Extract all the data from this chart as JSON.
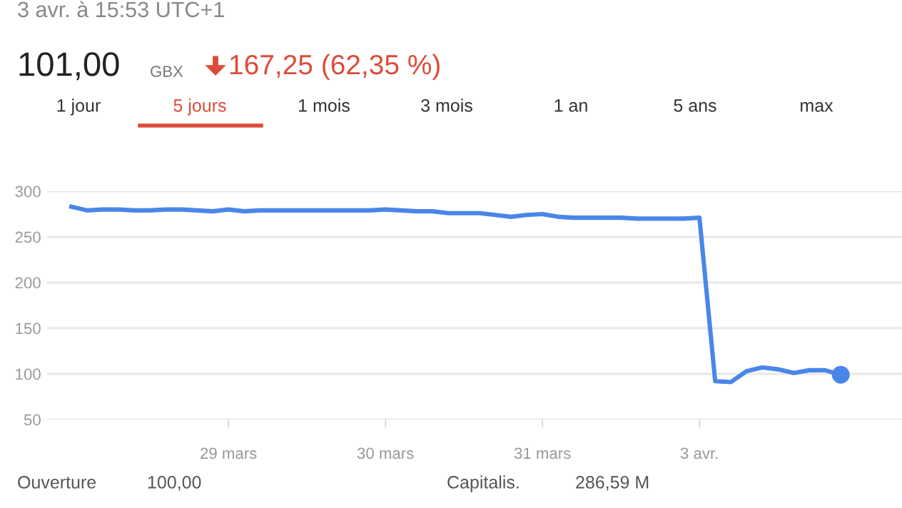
{
  "chart_data": {
    "type": "line",
    "title": "101,00",
    "subtitle": "3 avr. à 15:53 UTC+1",
    "annotations": [
      "GBX",
      "167,25 (62,35 %)",
      "1 jour",
      "5 jours",
      "1 mois",
      "3 mois",
      "1 an",
      "5 ans",
      "max",
      "Ouverture",
      "100,00",
      "Capitalis.",
      "286,59 M"
    ],
    "series": [
      {
        "color": "#4a86e8",
        "values": [
          283,
          279,
          280,
          280,
          279,
          279,
          280,
          280,
          279,
          278,
          280,
          278,
          279,
          279,
          279,
          279,
          279,
          279,
          279,
          279,
          280,
          279,
          278,
          278,
          276,
          276,
          276,
          274,
          272,
          274,
          275,
          272,
          271,
          271,
          271,
          271,
          270,
          270,
          270,
          270,
          271,
          92,
          91,
          103,
          107,
          105,
          101,
          104,
          104,
          99
        ]
      }
    ],
    "categories": [
      null,
      null,
      null,
      null,
      null,
      null,
      null,
      null,
      null,
      null,
      "29 mars",
      null,
      null,
      null,
      null,
      null,
      null,
      null,
      null,
      null,
      "30 mars",
      null,
      null,
      null,
      null,
      null,
      null,
      null,
      null,
      null,
      "31 mars",
      null,
      null,
      null,
      null,
      null,
      null,
      null,
      null,
      null,
      "3 avr.",
      null,
      null,
      null,
      null,
      null,
      null,
      null,
      null,
      null
    ],
    "ylim": [
      50,
      300
    ],
    "yticks": [
      50,
      100,
      150,
      200,
      250,
      300
    ],
    "grid": "y",
    "line_style": "solid"
  }
}
